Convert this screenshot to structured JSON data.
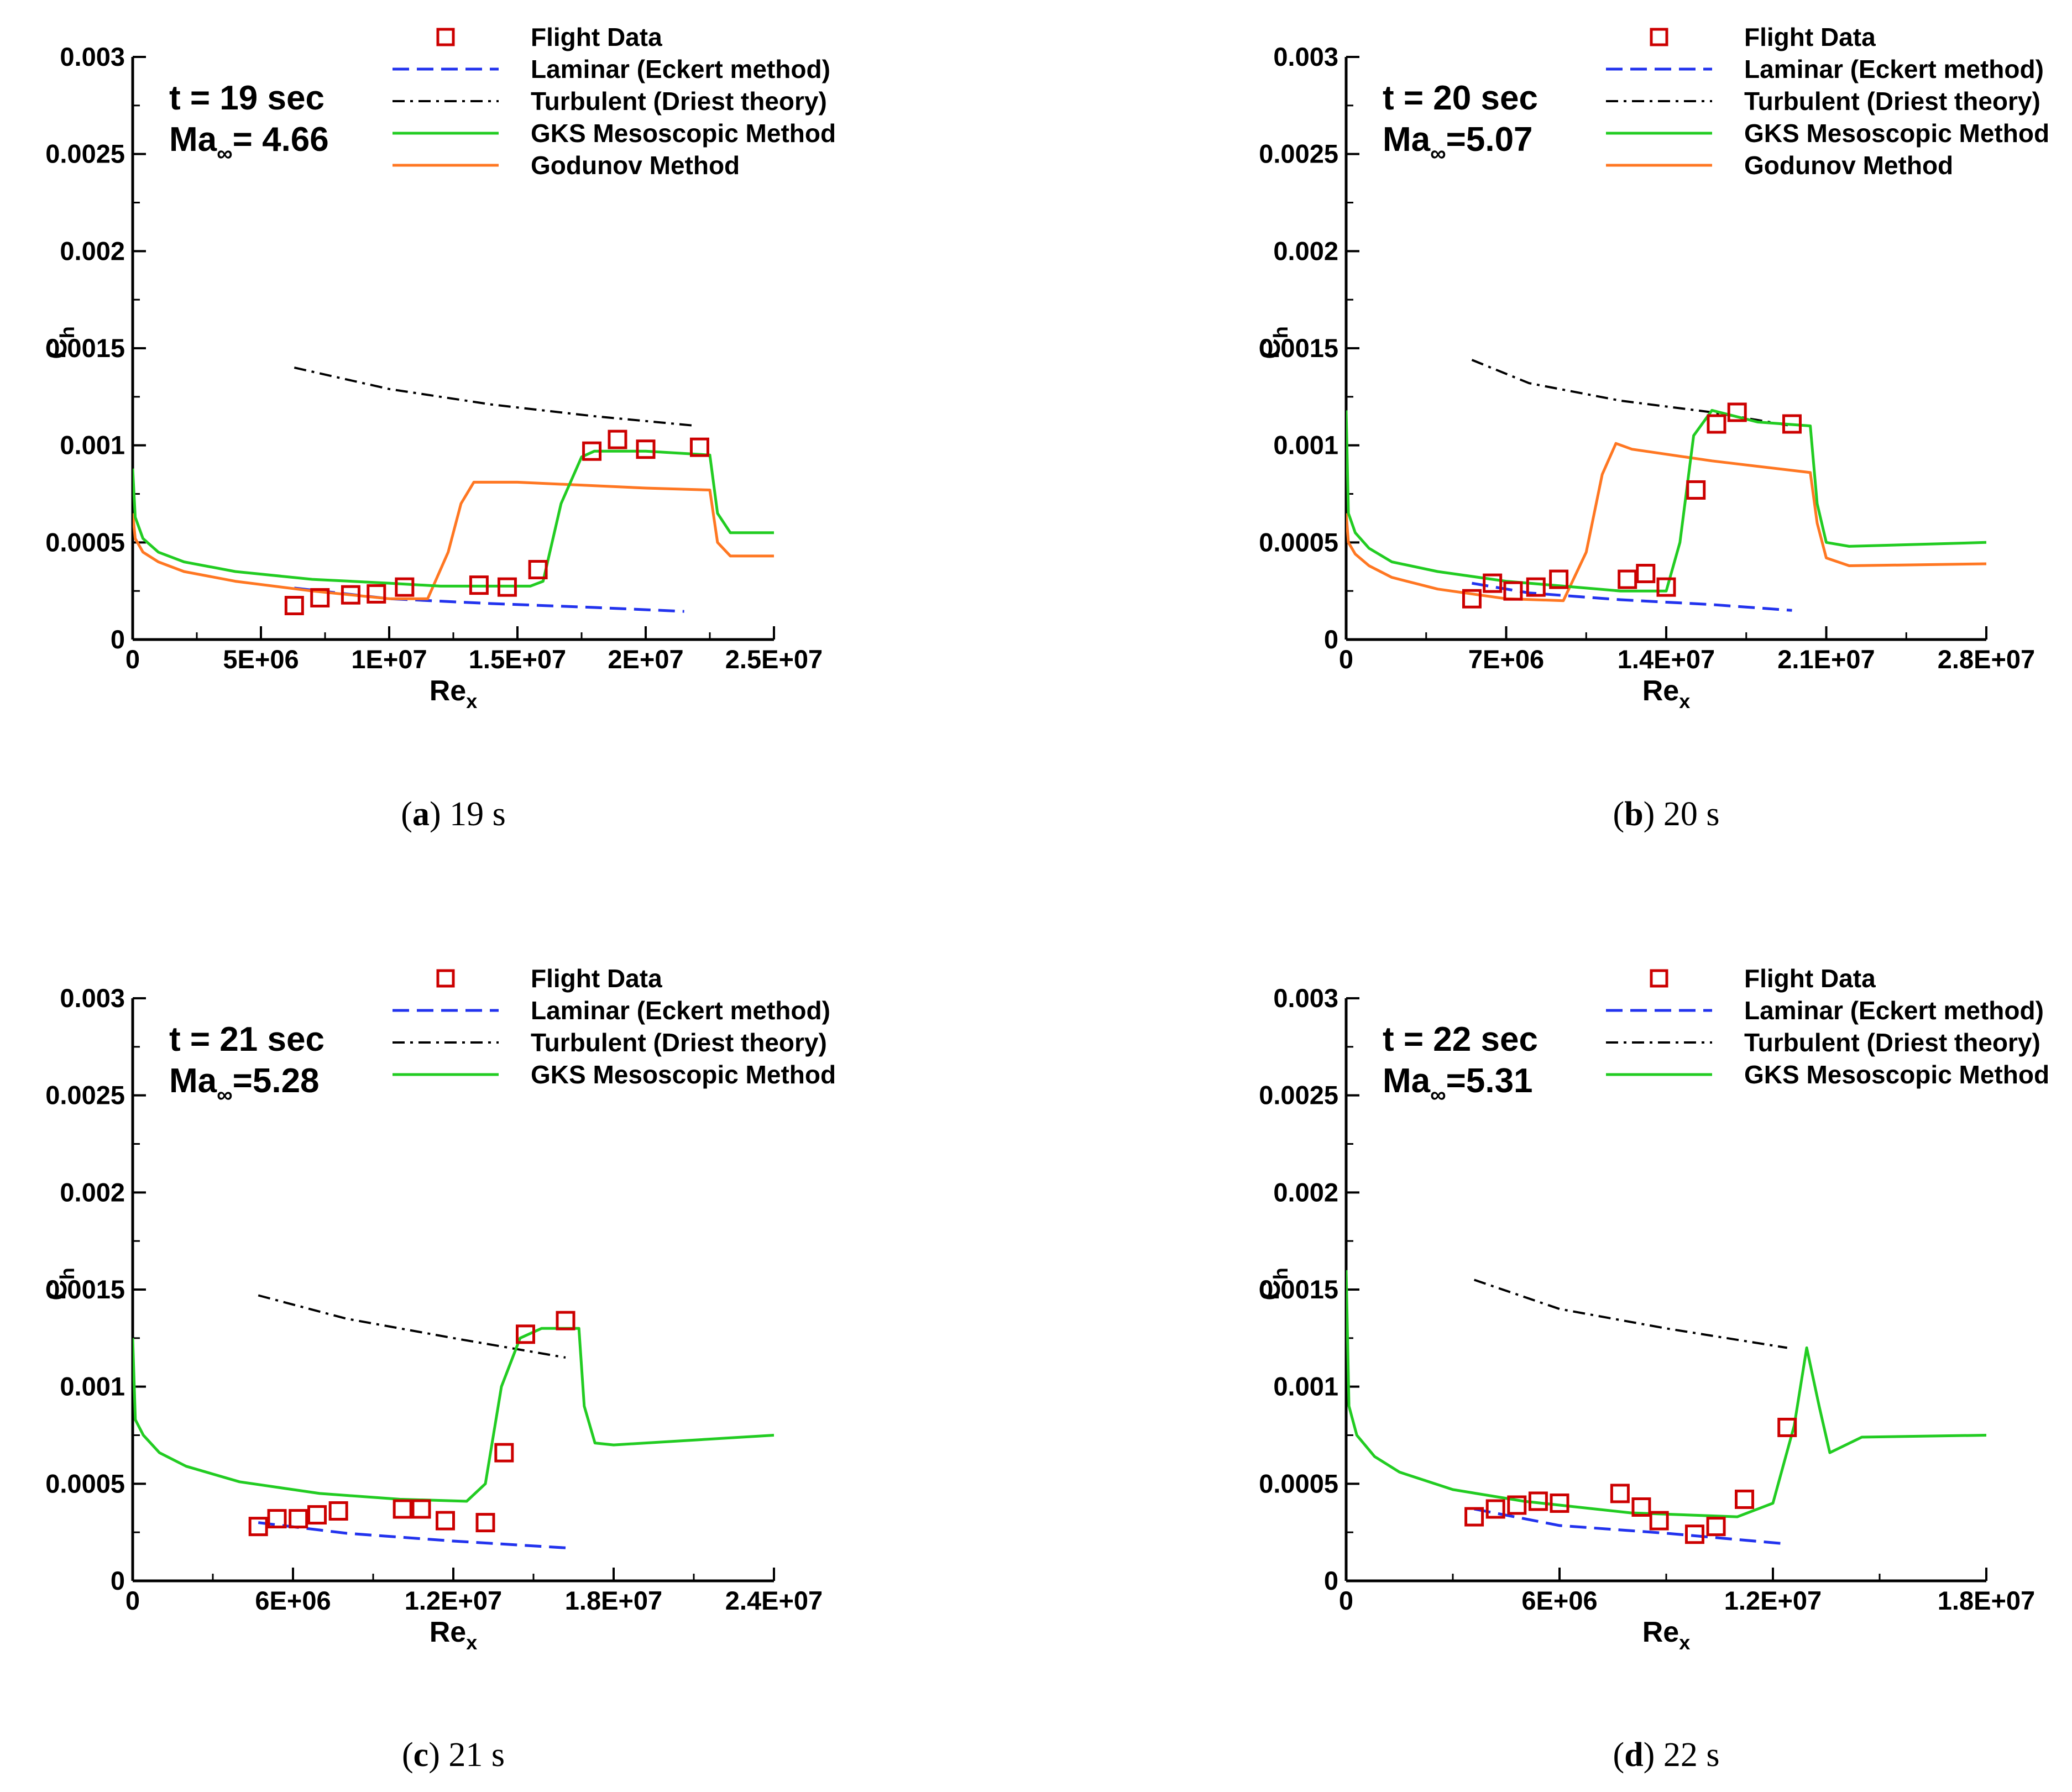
{
  "colors": {
    "flight": "#cc0000",
    "laminar": "#2233ee",
    "turbulent": "#000000",
    "gks": "#22cc22",
    "godunov": "#ff7722"
  },
  "chart_data": [
    {
      "type": "line",
      "caption_letter": "a",
      "caption_text": " 19 s",
      "time_label": "t = 19 sec",
      "mach_prefix": "Ma",
      "mach_sub": "∞",
      "mach_value": "= 4.66",
      "xlabel": "Re",
      "xlabel_sub": "x",
      "ylabel": "C",
      "ylabel_sub": "h",
      "xlim": [
        0,
        25000000
      ],
      "ylim": [
        0,
        0.003
      ],
      "xticks": [
        0,
        5000000,
        10000000,
        15000000,
        20000000,
        25000000
      ],
      "xtick_labels": [
        "0",
        "5E+06",
        "1E+07",
        "1.5E+07",
        "2E+07",
        "2.5E+07"
      ],
      "yticks": [
        0,
        0.0005,
        0.001,
        0.0015,
        0.002,
        0.0025,
        0.003
      ],
      "ytick_labels": [
        "0",
        "0.0005",
        "0.001",
        "0.0015",
        "0.002",
        "0.0025",
        "0.003"
      ],
      "legend": [
        "Flight Data",
        "Laminar (Eckert method)",
        "Turbulent (Driest theory)",
        "GKS Mesoscopic Method",
        "Godunov Method"
      ],
      "series": [
        {
          "name": "Flight Data",
          "style": "markers",
          "x": [
            6300000,
            7300000,
            8500000,
            9500000,
            10600000,
            13500000,
            14600000,
            15800000,
            17900000,
            18900000,
            20000000,
            22100000
          ],
          "y": [
            0.000175,
            0.000215,
            0.00023,
            0.000235,
            0.00027,
            0.00028,
            0.00027,
            0.00036,
            0.00097,
            0.00103,
            0.00098,
            0.00099
          ]
        },
        {
          "name": "Laminar (Eckert method)",
          "style": "dashed",
          "x": [
            6300000,
            10000000,
            14000000,
            18000000,
            21500000
          ],
          "y": [
            0.000265,
            0.00021,
            0.000185,
            0.000165,
            0.000145
          ]
        },
        {
          "name": "Turbulent (Driest theory)",
          "style": "dashdot",
          "x": [
            6300000,
            10000000,
            14000000,
            18000000,
            22000000
          ],
          "y": [
            0.0014,
            0.00129,
            0.00121,
            0.00115,
            0.0011
          ]
        },
        {
          "name": "GKS Mesoscopic Method",
          "style": "solid",
          "x": [
            0,
            100000,
            400000,
            1000000,
            2000000,
            4000000,
            7000000,
            10000000,
            12000000,
            15500000,
            16000000,
            16700000,
            17500000,
            18000000,
            20000000,
            22500000,
            22800000,
            23300000,
            25000000
          ],
          "y": [
            0.00088,
            0.00063,
            0.00052,
            0.00045,
            0.0004,
            0.00035,
            0.00031,
            0.00029,
            0.000275,
            0.000275,
            0.0003,
            0.0007,
            0.00094,
            0.00097,
            0.00097,
            0.00095,
            0.00065,
            0.00055,
            0.00055
          ]
        },
        {
          "name": "Godunov Method",
          "style": "solid",
          "x": [
            0,
            100000,
            400000,
            1000000,
            2000000,
            4000000,
            7000000,
            10000000,
            11500000,
            12300000,
            12800000,
            13300000,
            15000000,
            20000000,
            22500000,
            22800000,
            23300000,
            25000000
          ],
          "y": [
            0.00065,
            0.00052,
            0.00045,
            0.0004,
            0.00035,
            0.0003,
            0.00025,
            0.00021,
            0.00021,
            0.00045,
            0.0007,
            0.00081,
            0.00081,
            0.00078,
            0.00077,
            0.0005,
            0.00043,
            0.00043
          ]
        }
      ]
    },
    {
      "type": "line",
      "caption_letter": "b",
      "caption_text": " 20 s",
      "time_label": "t = 20 sec",
      "mach_prefix": "Ma",
      "mach_sub": "∞",
      "mach_value": "=5.07",
      "xlabel": "Re",
      "xlabel_sub": "x",
      "ylabel": "C",
      "ylabel_sub": "h",
      "xlim": [
        0,
        28000000
      ],
      "ylim": [
        0,
        0.003
      ],
      "xticks": [
        0,
        7000000,
        14000000,
        21000000,
        28000000
      ],
      "xtick_labels": [
        "0",
        "7E+06",
        "1.4E+07",
        "2.1E+07",
        "2.8E+07"
      ],
      "yticks": [
        0,
        0.0005,
        0.001,
        0.0015,
        0.002,
        0.0025,
        0.003
      ],
      "ytick_labels": [
        "0",
        "0.0005",
        "0.001",
        "0.0015",
        "0.002",
        "0.0025",
        "0.003"
      ],
      "legend": [
        "Flight Data",
        "Laminar (Eckert method)",
        "Turbulent (Driest theory)",
        "GKS Mesoscopic Method",
        "Godunov Method"
      ],
      "series": [
        {
          "name": "Flight Data",
          "style": "markers",
          "x": [
            5500000,
            6400000,
            7300000,
            8300000,
            9300000,
            12300000,
            13100000,
            14000000,
            15300000,
            16200000,
            17100000,
            19500000
          ],
          "y": [
            0.00021,
            0.00029,
            0.00025,
            0.00027,
            0.00031,
            0.00031,
            0.00034,
            0.00027,
            0.00077,
            0.00111,
            0.00117,
            0.00111
          ]
        },
        {
          "name": "Laminar (Eckert method)",
          "style": "dashed",
          "x": [
            5500000,
            8000000,
            12000000,
            16000000,
            19500000
          ],
          "y": [
            0.00029,
            0.00024,
            0.000205,
            0.00018,
            0.00015
          ]
        },
        {
          "name": "Turbulent (Driest theory)",
          "style": "dashdot",
          "x": [
            5500000,
            8000000,
            12000000,
            16000000,
            19500000
          ],
          "y": [
            0.00144,
            0.00132,
            0.00123,
            0.00117,
            0.0011
          ]
        },
        {
          "name": "GKS Mesoscopic Method",
          "style": "solid",
          "x": [
            0,
            100000,
            400000,
            1000000,
            2000000,
            4000000,
            7000000,
            10000000,
            12000000,
            14000000,
            14600000,
            15200000,
            16000000,
            18000000,
            20300000,
            20600000,
            21000000,
            22000000,
            28000000
          ],
          "y": [
            0.00118,
            0.00065,
            0.00055,
            0.00047,
            0.0004,
            0.00035,
            0.0003,
            0.00027,
            0.00025,
            0.00025,
            0.0005,
            0.00105,
            0.00118,
            0.00112,
            0.0011,
            0.0007,
            0.0005,
            0.00048,
            0.0005
          ]
        },
        {
          "name": "Godunov Method",
          "style": "solid",
          "x": [
            0,
            100000,
            400000,
            1000000,
            2000000,
            4000000,
            7000000,
            9500000,
            10500000,
            11200000,
            11800000,
            12500000,
            16000000,
            20300000,
            20600000,
            21000000,
            22000000,
            28000000
          ],
          "y": [
            0.00065,
            0.0005,
            0.00044,
            0.00038,
            0.00032,
            0.00026,
            0.00021,
            0.0002,
            0.00045,
            0.00085,
            0.00101,
            0.00098,
            0.00092,
            0.00086,
            0.0006,
            0.00042,
            0.00038,
            0.00039
          ]
        }
      ]
    },
    {
      "type": "line",
      "caption_letter": "c",
      "caption_text": " 21 s",
      "time_label": "t = 21 sec",
      "mach_prefix": "Ma",
      "mach_sub": "∞",
      "mach_value": "=5.28",
      "xlabel": "Re",
      "xlabel_sub": "x",
      "ylabel": "C",
      "ylabel_sub": "h",
      "xlim": [
        0,
        24000000
      ],
      "ylim": [
        0,
        0.003
      ],
      "xticks": [
        0,
        6000000,
        12000000,
        18000000,
        24000000
      ],
      "xtick_labels": [
        "0",
        "6E+06",
        "1.2E+07",
        "1.8E+07",
        "2.4E+07"
      ],
      "yticks": [
        0,
        0.0005,
        0.001,
        0.0015,
        0.002,
        0.0025,
        0.003
      ],
      "ytick_labels": [
        "0",
        "0.0005",
        "0.001",
        "0.0015",
        "0.002",
        "0.0025",
        "0.003"
      ],
      "legend": [
        "Flight Data",
        "Laminar (Eckert method)",
        "Turbulent (Driest theory)",
        "GKS Mesoscopic Method"
      ],
      "series": [
        {
          "name": "Flight Data",
          "style": "markers",
          "x": [
            4700000,
            5400000,
            6200000,
            6900000,
            7700000,
            10100000,
            10800000,
            11700000,
            13200000,
            13900000,
            14700000,
            16200000
          ],
          "y": [
            0.00028,
            0.00032,
            0.00032,
            0.00034,
            0.00036,
            0.00037,
            0.00037,
            0.00031,
            0.0003,
            0.00066,
            0.00127,
            0.00134
          ]
        },
        {
          "name": "Laminar (Eckert method)",
          "style": "dashed",
          "x": [
            4700000,
            8000000,
            12000000,
            16200000
          ],
          "y": [
            0.0003,
            0.000245,
            0.000205,
            0.00017
          ]
        },
        {
          "name": "Turbulent (Driest theory)",
          "style": "dashdot",
          "x": [
            4700000,
            8000000,
            12000000,
            16200000
          ],
          "y": [
            0.00147,
            0.00135,
            0.00125,
            0.00115
          ]
        },
        {
          "name": "GKS Mesoscopic Method",
          "style": "solid",
          "x": [
            0,
            100000,
            400000,
            1000000,
            2000000,
            4000000,
            7000000,
            10000000,
            12500000,
            13200000,
            13800000,
            14500000,
            15300000,
            16700000,
            16900000,
            17300000,
            18000000,
            24000000
          ],
          "y": [
            0.00125,
            0.00083,
            0.00075,
            0.00066,
            0.00059,
            0.00051,
            0.00045,
            0.00042,
            0.00041,
            0.0005,
            0.001,
            0.00125,
            0.0013,
            0.0013,
            0.0009,
            0.00071,
            0.0007,
            0.00075
          ]
        }
      ]
    },
    {
      "type": "line",
      "caption_letter": "d",
      "caption_text": " 22 s",
      "time_label": "t = 22 sec",
      "mach_prefix": "Ma",
      "mach_sub": "∞",
      "mach_value": "=5.31",
      "xlabel": "Re",
      "xlabel_sub": "x",
      "ylabel": "C",
      "ylabel_sub": "h",
      "xlim": [
        0,
        18000000
      ],
      "ylim": [
        0,
        0.003
      ],
      "xticks": [
        0,
        6000000,
        12000000,
        18000000
      ],
      "xtick_labels": [
        "0",
        "6E+06",
        "1.2E+07",
        "1.8E+07"
      ],
      "yticks": [
        0,
        0.0005,
        0.001,
        0.0015,
        0.002,
        0.0025,
        0.003
      ],
      "ytick_labels": [
        "0",
        "0.0005",
        "0.001",
        "0.0015",
        "0.002",
        "0.0025",
        "0.003"
      ],
      "legend": [
        "Flight Data",
        "Laminar (Eckert method)",
        "Turbulent (Driest theory)",
        "GKS Mesoscopic Method"
      ],
      "series": [
        {
          "name": "Flight Data",
          "style": "markers",
          "x": [
            3600000,
            4200000,
            4800000,
            5400000,
            6000000,
            7700000,
            8300000,
            8800000,
            9800000,
            10400000,
            11200000,
            12400000
          ],
          "y": [
            0.00033,
            0.00037,
            0.00039,
            0.00041,
            0.0004,
            0.00045,
            0.00038,
            0.00031,
            0.00024,
            0.00028,
            0.00042,
            0.00079
          ]
        },
        {
          "name": "Laminar (Eckert method)",
          "style": "dashed",
          "x": [
            3600000,
            6000000,
            9000000,
            12400000
          ],
          "y": [
            0.00037,
            0.000285,
            0.000245,
            0.00019
          ]
        },
        {
          "name": "Turbulent (Driest theory)",
          "style": "dashdot",
          "x": [
            3600000,
            6000000,
            9000000,
            12400000
          ],
          "y": [
            0.00155,
            0.0014,
            0.0013,
            0.0012
          ]
        },
        {
          "name": "GKS Mesoscopic Method",
          "style": "solid",
          "x": [
            0,
            80000,
            300000,
            800000,
            1500000,
            3000000,
            5000000,
            8000000,
            11000000,
            12000000,
            12600000,
            12950000,
            13300000,
            13600000,
            14500000,
            18000000
          ],
          "y": [
            0.0016,
            0.0009,
            0.00075,
            0.00064,
            0.00056,
            0.00047,
            0.00041,
            0.00035,
            0.00033,
            0.0004,
            0.0008,
            0.0012,
            0.0009,
            0.00066,
            0.00074,
            0.00075
          ]
        }
      ]
    }
  ]
}
